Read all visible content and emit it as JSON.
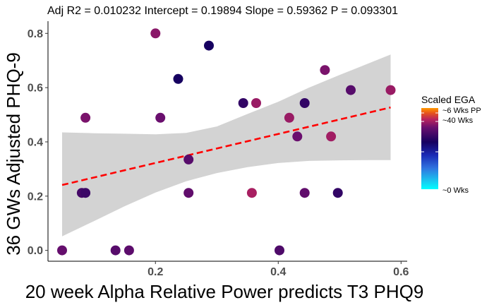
{
  "chart_data": {
    "type": "scatter",
    "title": "Adj R2 =  0.010232 Intercept = 0.19894  Slope = 0.59362  P = 0.093301",
    "xlabel": "20 week Alpha Relative Power predicts T3 PHQ9",
    "ylabel": "36 GWs Adjusted PHQ-9",
    "xlim": [
      0.025,
      0.61
    ],
    "ylim": [
      -0.04,
      0.845
    ],
    "x_ticks": [
      0.2,
      0.4,
      0.6
    ],
    "x_tick_labels": [
      "0.2",
      "0.4",
      "0.6"
    ],
    "y_ticks": [
      0.0,
      0.2,
      0.4,
      0.6,
      0.8
    ],
    "y_tick_labels": [
      "0.0",
      "0.2",
      "0.4",
      "0.6",
      "0.8"
    ],
    "grid": false,
    "points": [
      {
        "x": 0.048,
        "y": 0.0,
        "ega": 0.75
      },
      {
        "x": 0.08,
        "y": 0.212,
        "ega": 0.68
      },
      {
        "x": 0.086,
        "y": 0.212,
        "ega": 0.66
      },
      {
        "x": 0.086,
        "y": 0.489,
        "ega": 0.78
      },
      {
        "x": 0.135,
        "y": 0.0,
        "ega": 0.72
      },
      {
        "x": 0.157,
        "y": 0.0,
        "ega": 0.73
      },
      {
        "x": 0.2,
        "y": 0.8,
        "ega": 0.8
      },
      {
        "x": 0.208,
        "y": 0.489,
        "ega": 0.76
      },
      {
        "x": 0.237,
        "y": 0.632,
        "ega": 0.58
      },
      {
        "x": 0.254,
        "y": 0.335,
        "ega": 0.72
      },
      {
        "x": 0.254,
        "y": 0.212,
        "ega": 0.74
      },
      {
        "x": 0.287,
        "y": 0.755,
        "ega": 0.58
      },
      {
        "x": 0.343,
        "y": 0.543,
        "ega": 0.64
      },
      {
        "x": 0.357,
        "y": 0.212,
        "ega": 0.84
      },
      {
        "x": 0.364,
        "y": 0.543,
        "ega": 0.82
      },
      {
        "x": 0.402,
        "y": 0.0,
        "ega": 0.7
      },
      {
        "x": 0.418,
        "y": 0.489,
        "ega": 0.82
      },
      {
        "x": 0.431,
        "y": 0.42,
        "ega": 0.76
      },
      {
        "x": 0.443,
        "y": 0.543,
        "ega": 0.64
      },
      {
        "x": 0.443,
        "y": 0.212,
        "ega": 0.74
      },
      {
        "x": 0.476,
        "y": 0.665,
        "ega": 0.78
      },
      {
        "x": 0.486,
        "y": 0.42,
        "ega": 0.83
      },
      {
        "x": 0.497,
        "y": 0.212,
        "ega": 0.64
      },
      {
        "x": 0.518,
        "y": 0.591,
        "ega": 0.72
      },
      {
        "x": 0.583,
        "y": 0.591,
        "ega": 0.82
      }
    ],
    "trend": {
      "color": "#ff0000",
      "style": "dashed",
      "x0": 0.048,
      "y0": 0.241,
      "x1": 0.583,
      "y1": 0.527
    },
    "confidence_band": {
      "color": "#d3d3d3",
      "x": [
        0.048,
        0.1,
        0.15,
        0.2,
        0.25,
        0.3,
        0.35,
        0.4,
        0.45,
        0.5,
        0.55,
        0.583
      ],
      "lower": [
        0.052,
        0.108,
        0.163,
        0.213,
        0.255,
        0.285,
        0.307,
        0.322,
        0.33,
        0.332,
        0.333,
        0.333
      ],
      "upper": [
        0.435,
        0.432,
        0.43,
        0.428,
        0.433,
        0.457,
        0.503,
        0.548,
        0.6,
        0.647,
        0.692,
        0.722
      ]
    },
    "legend": {
      "title": "Scaled EGA",
      "placement": "right",
      "labels": [
        "~6 Wks PP",
        "~40 Wks",
        "~0 Wks"
      ],
      "colors": [
        "#ff9900",
        "#e8561a",
        "#b8235e",
        "#6a0f6e",
        "#160060",
        "#1a2ab5",
        "#2f73e0",
        "#18c8f0",
        "#00ffff"
      ]
    }
  }
}
